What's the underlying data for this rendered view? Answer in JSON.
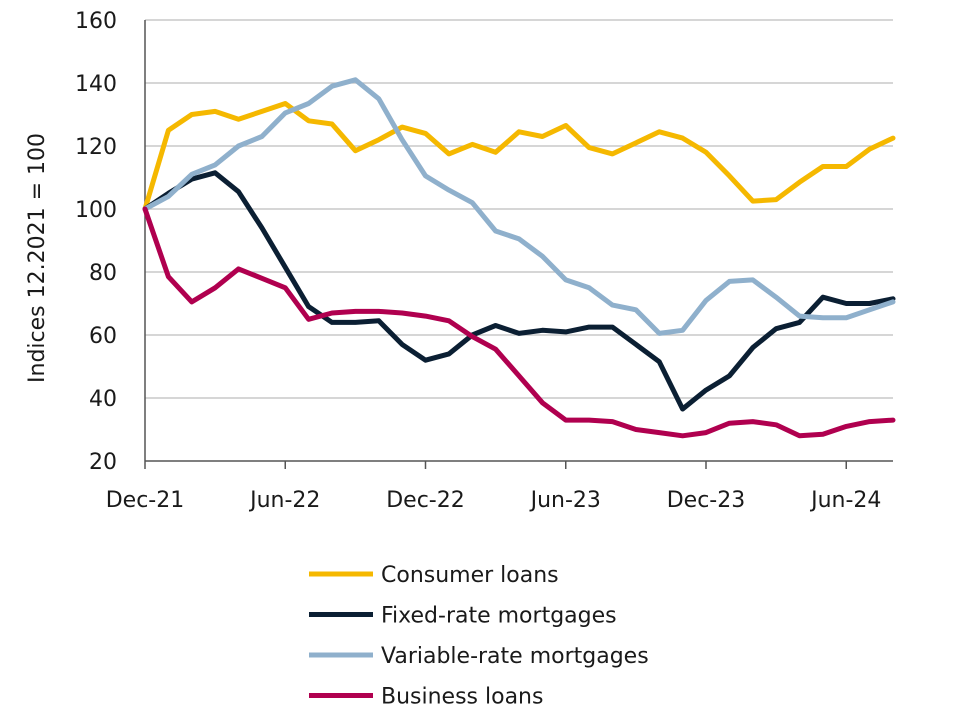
{
  "chart_data": {
    "type": "line",
    "ylabel": "Indices 12.2021 = 100",
    "ylim": [
      20,
      160
    ],
    "yticks": [
      20,
      40,
      60,
      80,
      100,
      120,
      140,
      160
    ],
    "x_tick_labels": [
      "Dec-21",
      "Jun-22",
      "Dec-22",
      "Jun-23",
      "Dec-23",
      "Jun-24"
    ],
    "x_tick_indices": [
      0,
      6,
      12,
      18,
      24,
      30
    ],
    "x_count": 33,
    "grid": "horizontal",
    "legend_position": "bottom",
    "series": [
      {
        "name": "Consumer loans",
        "color": "#f5b800",
        "values": [
          100,
          125,
          130,
          131,
          128.5,
          131,
          133.5,
          128,
          127,
          118.5,
          122,
          126,
          124,
          117.5,
          120.5,
          118,
          124.5,
          123,
          126.5,
          119.5,
          117.5,
          121,
          124.5,
          122.5,
          118,
          110.5,
          102.5,
          103,
          108.5,
          113.5,
          113.5,
          119,
          122.5
        ]
      },
      {
        "name": "Fixed-rate mortgages",
        "color": "#0b1f33",
        "values": [
          100,
          105,
          109.5,
          111.5,
          105.5,
          94,
          81.5,
          69,
          64,
          64,
          64.5,
          57,
          52,
          54,
          60,
          63,
          60.5,
          61.5,
          61,
          62.5,
          62.5,
          57,
          51.5,
          36.5,
          42.5,
          47,
          56,
          62,
          64,
          72,
          70,
          70,
          71.5
        ]
      },
      {
        "name": "Variable-rate mortgages",
        "color": "#8fb0cc",
        "values": [
          100,
          104,
          111,
          114,
          120,
          123,
          130.5,
          133.5,
          139,
          141,
          135,
          122,
          110.5,
          106,
          102,
          93,
          90.5,
          85,
          77.5,
          75,
          69.5,
          68,
          60.5,
          61.5,
          71,
          77,
          77.5,
          72,
          66,
          65.5,
          65.5,
          68,
          70.5
        ]
      },
      {
        "name": "Business loans",
        "color": "#b0004f",
        "values": [
          100,
          78.5,
          70.5,
          75,
          81,
          78,
          75,
          65,
          67,
          67.5,
          67.5,
          67,
          66,
          64.5,
          59.5,
          55.5,
          47,
          38.5,
          33,
          33,
          32.5,
          30,
          29,
          28,
          29,
          32,
          32.5,
          31.5,
          28,
          28.5,
          31,
          32.5,
          33
        ]
      }
    ]
  }
}
